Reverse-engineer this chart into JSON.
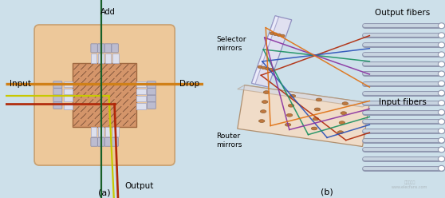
{
  "bg_color": "#cde0ea",
  "fig_width": 5.58,
  "fig_height": 2.48,
  "dpi": 100,
  "label_a": "(a)",
  "label_b": "(b)",
  "text_add": "Add",
  "text_input": "Input",
  "text_drop": "Drop",
  "text_output": "Output",
  "text_selector": "Selector\nmirrors",
  "text_router": "Router\nmirrors",
  "text_output_fibers": "Output fibers",
  "text_input_fibers": "Input fibers",
  "center_box_color": "#d4956a",
  "outer_box_color": "#edc89a",
  "outer_box_edge": "#c8a070",
  "coupler_light": "#dde0ee",
  "coupler_dark": "#b0b0c8",
  "coupler_edge": "#9090aa",
  "line_orange": "#d08018",
  "line_yellow": "#c8c800",
  "line_red": "#b02808",
  "line_green": "#186028",
  "fiber_outer": "#9098b0",
  "fiber_inner": "#c8d4e0",
  "fiber_cap": "#ffffff",
  "ray_colors": [
    "#b02808",
    "#2850b8",
    "#189060",
    "#8830a0",
    "#e07010"
  ],
  "mirror_router_face": "#f0dcc8",
  "mirror_router_edge": "#b09070",
  "mirror_router_top": "#c8d8f0",
  "mirror_sel_face": "#e0e0f0",
  "mirror_sel_edge": "#9090c0",
  "mirror_sel_top": "#f0f0ff",
  "dot_color": "#c07840",
  "dot_edge": "#906030"
}
